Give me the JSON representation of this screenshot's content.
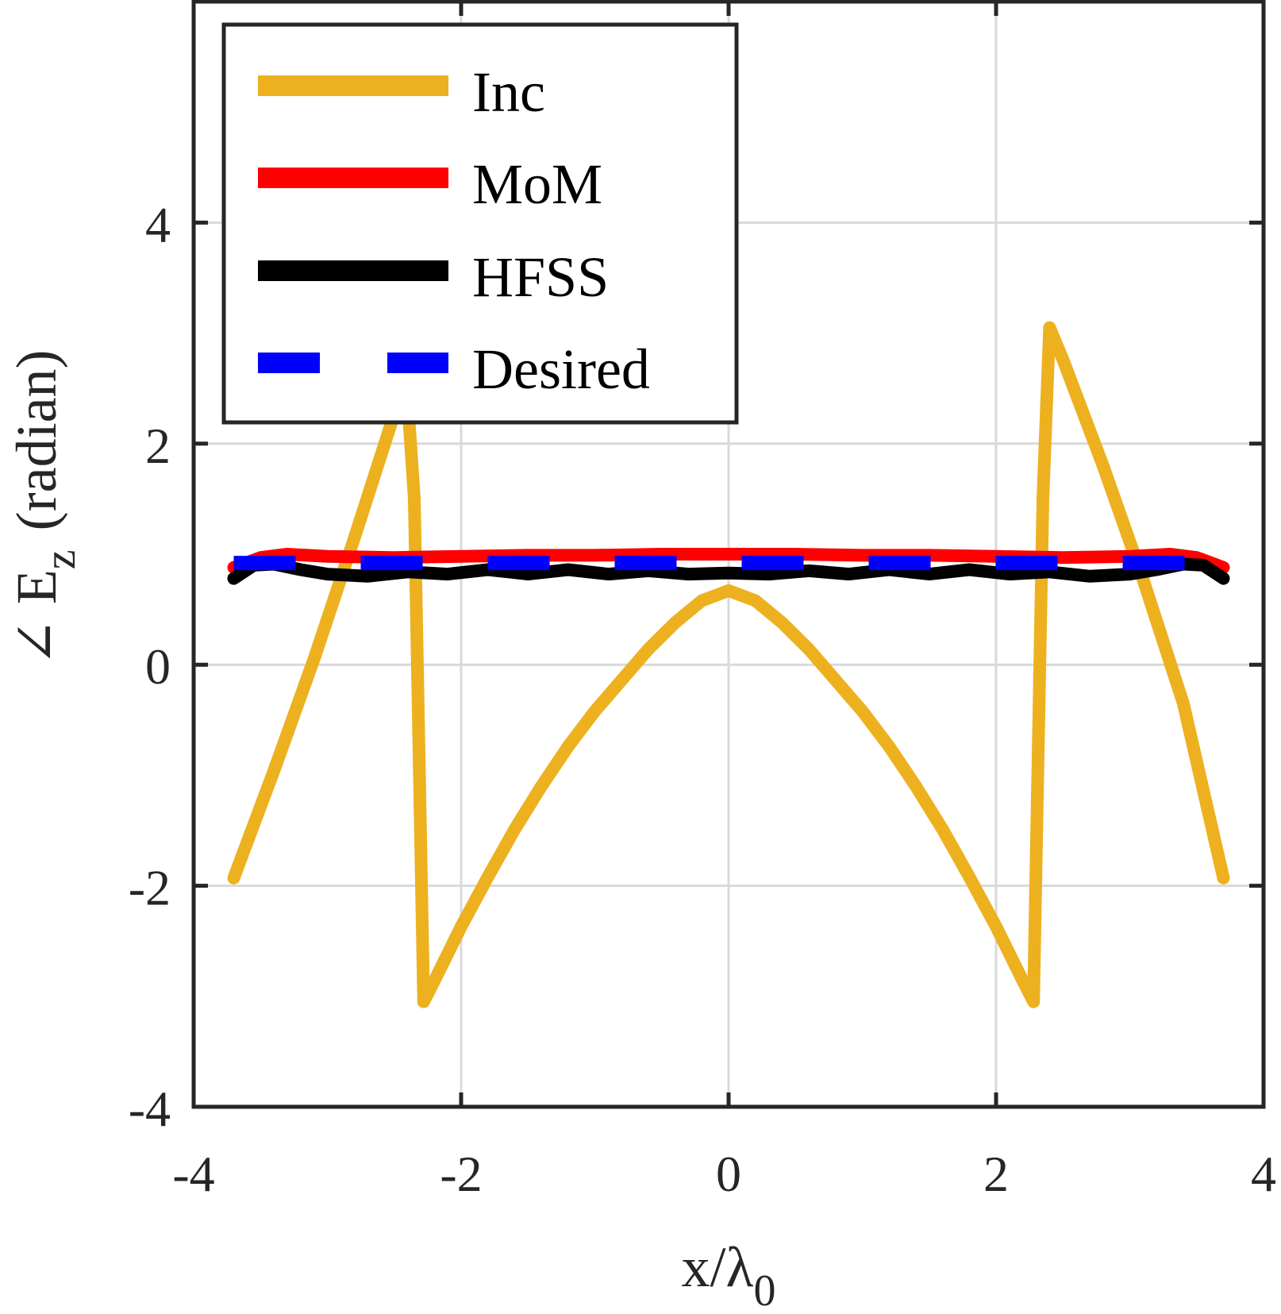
{
  "chart_data": {
    "type": "line",
    "title": "",
    "xlabel": "x/λ",
    "xlabel_sub": "0",
    "ylabel": "∠ E",
    "ylabel_sub": "z",
    "ylabel_suffix": "(radian)",
    "xlim": [
      -4,
      4
    ],
    "ylim": [
      -4,
      6
    ],
    "xticks": [
      -4,
      -2,
      0,
      2,
      4
    ],
    "yticks": [
      -4,
      -2,
      0,
      2,
      4
    ],
    "xtick_labels": [
      "-4",
      "-2",
      "0",
      "2",
      "4"
    ],
    "ytick_labels": [
      "-4",
      "-2",
      "0",
      "2",
      "4"
    ],
    "grid": true,
    "legend_position": "top-left",
    "series": [
      {
        "name": "Inc",
        "color": "#EDB120",
        "style": "solid",
        "x": [
          -3.7,
          -3.4,
          -3.1,
          -2.8,
          -2.5,
          -2.4,
          -2.35,
          -2.28,
          -2.2,
          -2.0,
          -1.8,
          -1.6,
          -1.4,
          -1.2,
          -1.0,
          -0.8,
          -0.6,
          -0.4,
          -0.2,
          0.0,
          0.2,
          0.4,
          0.6,
          0.8,
          1.0,
          1.2,
          1.4,
          1.6,
          1.8,
          2.0,
          2.2,
          2.28,
          2.35,
          2.4,
          2.5,
          2.8,
          3.1,
          3.4,
          3.7
        ],
        "y": [
          -1.93,
          -0.96,
          0.05,
          1.14,
          2.27,
          2.4,
          1.5,
          -3.05,
          -2.86,
          -2.37,
          -1.92,
          -1.49,
          -1.1,
          -0.74,
          -0.42,
          -0.14,
          0.14,
          0.38,
          0.58,
          0.67,
          0.58,
          0.38,
          0.14,
          -0.14,
          -0.42,
          -0.74,
          -1.1,
          -1.49,
          -1.92,
          -2.37,
          -2.86,
          -3.05,
          1.5,
          3.05,
          2.76,
          1.8,
          0.77,
          -0.35,
          -1.93
        ]
      },
      {
        "name": "MoM",
        "color": "#FF0000",
        "style": "solid",
        "x": [
          -3.7,
          -3.5,
          -3.3,
          -3.0,
          -2.5,
          -2.0,
          -1.5,
          -1.0,
          -0.5,
          0.0,
          0.5,
          1.0,
          1.5,
          2.0,
          2.5,
          3.0,
          3.3,
          3.5,
          3.7
        ],
        "y": [
          0.88,
          0.97,
          1.0,
          0.98,
          0.97,
          0.98,
          0.99,
          0.99,
          1.0,
          1.0,
          1.0,
          0.99,
          0.99,
          0.98,
          0.97,
          0.98,
          1.0,
          0.97,
          0.88
        ]
      },
      {
        "name": "HFSS",
        "color": "#000000",
        "style": "solid",
        "x": [
          -3.7,
          -3.55,
          -3.4,
          -3.2,
          -3.0,
          -2.7,
          -2.4,
          -2.1,
          -1.8,
          -1.5,
          -1.2,
          -0.9,
          -0.6,
          -0.3,
          0.0,
          0.3,
          0.6,
          0.9,
          1.2,
          1.5,
          1.8,
          2.1,
          2.4,
          2.7,
          3.0,
          3.2,
          3.4,
          3.55,
          3.7
        ],
        "y": [
          0.78,
          0.9,
          0.91,
          0.86,
          0.82,
          0.8,
          0.84,
          0.82,
          0.86,
          0.82,
          0.86,
          0.82,
          0.85,
          0.82,
          0.83,
          0.82,
          0.85,
          0.82,
          0.86,
          0.82,
          0.86,
          0.82,
          0.84,
          0.8,
          0.82,
          0.86,
          0.91,
          0.9,
          0.78
        ]
      },
      {
        "name": "Desired",
        "color": "#0000FF",
        "style": "dashed",
        "x": [
          -3.7,
          3.7
        ],
        "y": [
          0.92,
          0.92
        ]
      }
    ]
  }
}
